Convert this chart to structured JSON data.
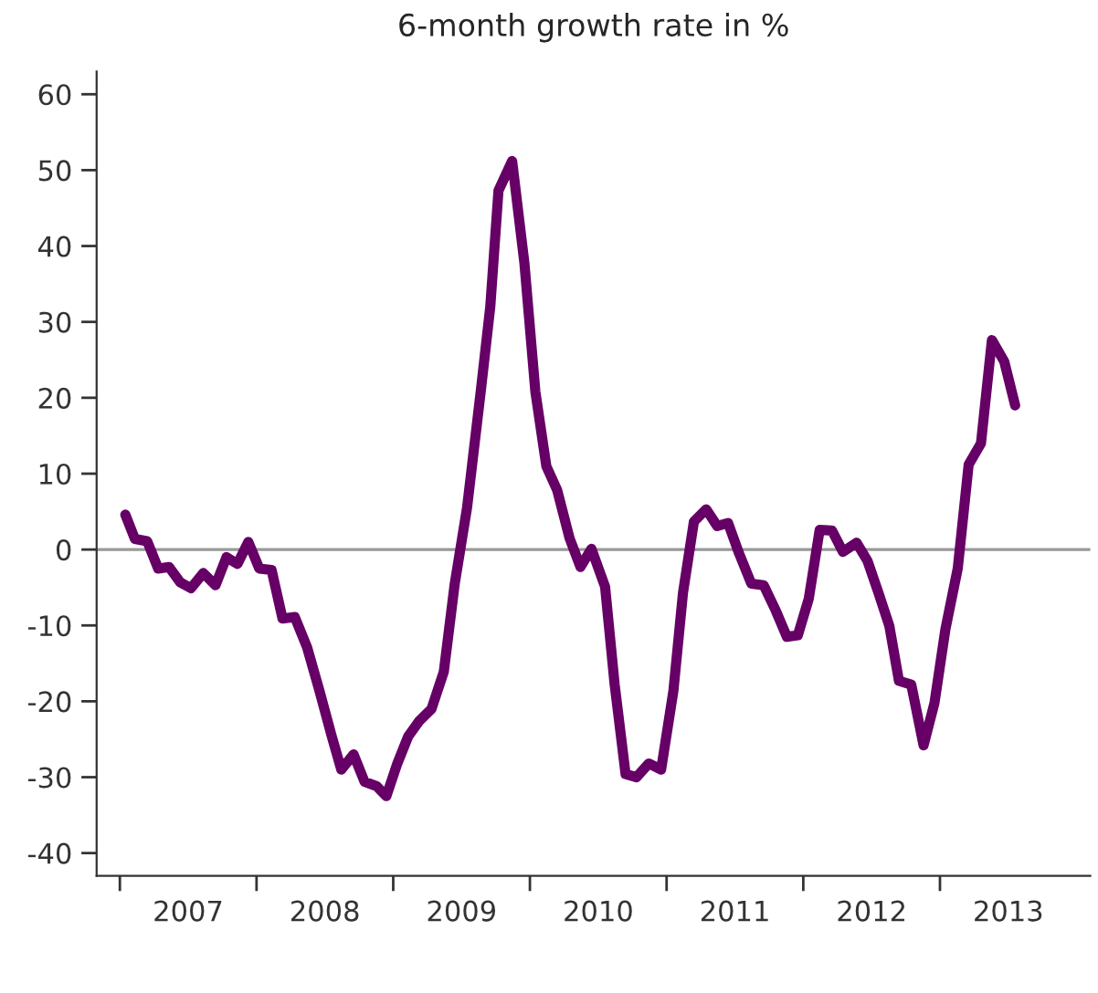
{
  "chart_data": {
    "type": "line",
    "title": "6-month growth rate in %",
    "x": [
      2007.04,
      2007.11,
      2007.2,
      2007.28,
      2007.36,
      2007.44,
      2007.52,
      2007.61,
      2007.7,
      2007.78,
      2007.86,
      2007.94,
      2008.02,
      2008.11,
      2008.19,
      2008.28,
      2008.37,
      2008.46,
      2008.55,
      2008.62,
      2008.71,
      2008.79,
      2008.88,
      2008.95,
      2009.03,
      2009.11,
      2009.19,
      2009.28,
      2009.37,
      2009.45,
      2009.54,
      2009.64,
      2009.71,
      2009.77,
      2009.87,
      2009.96,
      2010.04,
      2010.12,
      2010.2,
      2010.29,
      2010.37,
      2010.45,
      2010.55,
      2010.62,
      2010.7,
      2010.78,
      2010.87,
      2010.96,
      2011.05,
      2011.12,
      2011.2,
      2011.29,
      2011.37,
      2011.45,
      2011.53,
      2011.62,
      2011.71,
      2011.8,
      2011.88,
      2011.96,
      2012.04,
      2012.12,
      2012.21,
      2012.29,
      2012.39,
      2012.47,
      2012.55,
      2012.63,
      2012.7,
      2012.79,
      2012.88,
      2012.96,
      2013.04,
      2013.13,
      2013.21,
      2013.3,
      2013.38,
      2013.47,
      2013.55
    ],
    "series": [
      {
        "color": "#660066",
        "values": [
          4.6,
          1.4,
          1.1,
          -2.5,
          -2.3,
          -4.3,
          -5.1,
          -3.1,
          -4.7,
          -1.0,
          -1.9,
          1.0,
          -2.5,
          -2.7,
          -9.1,
          -8.9,
          -12.9,
          -18.6,
          -24.6,
          -29.0,
          -27.0,
          -30.6,
          -31.2,
          -32.5,
          -28.2,
          -24.6,
          -22.6,
          -21.0,
          -16.1,
          -4.5,
          5.5,
          20.8,
          32.0,
          47.3,
          51.2,
          37.7,
          20.8,
          11.0,
          7.8,
          1.5,
          -2.3,
          0.1,
          -4.9,
          -17.8,
          -29.6,
          -30.0,
          -28.2,
          -29.0,
          -18.6,
          -5.7,
          3.7,
          5.3,
          3.1,
          3.5,
          -0.5,
          -4.5,
          -4.7,
          -8.1,
          -11.5,
          -11.3,
          -6.5,
          2.6,
          2.5,
          -0.3,
          0.9,
          -1.5,
          -5.7,
          -10.1,
          -17.3,
          -17.8,
          -25.8,
          -20.2,
          -10.5,
          -2.5,
          11.2,
          14.0,
          27.6,
          24.8,
          19.0
        ]
      }
    ],
    "xlim": [
      2006.83,
      2014.1
    ],
    "xticks": [
      {
        "value": 2007,
        "label": null
      },
      {
        "value": 2007.5,
        "label": "2007"
      },
      {
        "value": 2008,
        "label": null
      },
      {
        "value": 2008.5,
        "label": "2008"
      },
      {
        "value": 2009,
        "label": null
      },
      {
        "value": 2009.5,
        "label": "2009"
      },
      {
        "value": 2010,
        "label": null
      },
      {
        "value": 2010.5,
        "label": "2010"
      },
      {
        "value": 2011,
        "label": null
      },
      {
        "value": 2011.5,
        "label": "2011"
      },
      {
        "value": 2012,
        "label": null
      },
      {
        "value": 2012.5,
        "label": "2012"
      },
      {
        "value": 2013,
        "label": null
      },
      {
        "value": 2013.5,
        "label": "2013"
      }
    ],
    "ylim": [
      -43,
      63
    ],
    "yticks": [
      -40,
      -30,
      -20,
      -10,
      0,
      10,
      20,
      30,
      40,
      50,
      60
    ],
    "ref_lines": [
      {
        "axis": "y",
        "value": 0,
        "color": "#999999"
      }
    ],
    "grid": false
  }
}
